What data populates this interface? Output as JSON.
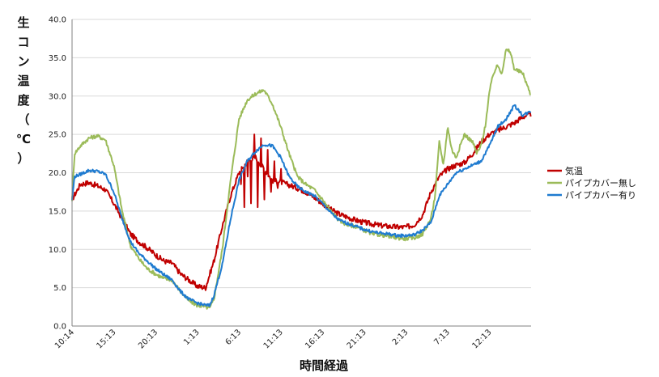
{
  "chart_data": {
    "type": "line",
    "ylabel": "生コン温度（℃）",
    "xlabel": "時間経過",
    "ylim": [
      0,
      40
    ],
    "yticks": [
      "0.0",
      "5.0",
      "10.0",
      "15.0",
      "20.0",
      "25.0",
      "30.0",
      "35.0",
      "40.0"
    ],
    "xticks": [
      "10:14",
      "15:13",
      "20:13",
      "1:13",
      "6:13",
      "11:13",
      "16:13",
      "21:13",
      "2:13",
      "7:13",
      "12:13"
    ],
    "x_start_hour": 10.23,
    "hours_per_tick": 5,
    "grid": true,
    "legend_position": "right",
    "series": [
      {
        "name": "気温",
        "color": "#c00000",
        "noise": 0.35,
        "x": [
          0,
          1,
          2,
          3,
          4,
          5,
          6,
          7,
          8,
          9,
          10,
          11,
          12,
          13,
          14,
          15,
          16,
          17,
          18,
          19,
          20,
          21,
          22,
          23,
          24,
          25,
          26,
          27,
          28,
          29,
          30,
          31,
          32,
          33,
          34,
          35,
          36,
          37,
          38,
          39,
          40,
          41,
          42,
          43,
          44,
          45,
          46,
          47,
          48,
          49,
          50,
          51,
          52,
          53,
          54,
          55
        ],
        "values": [
          16.5,
          18.5,
          18.7,
          18.3,
          17.8,
          16.0,
          14.0,
          12.0,
          11.0,
          10.2,
          9.3,
          8.5,
          8.2,
          6.8,
          6.0,
          5.2,
          5.0,
          8.5,
          13.0,
          17.0,
          20.0,
          21.5,
          22.0,
          20.5,
          19.0,
          18.8,
          18.4,
          18.0,
          17.5,
          16.8,
          16.0,
          15.2,
          14.6,
          14.2,
          13.8,
          13.5,
          13.3,
          13.1,
          13.0,
          12.9,
          12.9,
          13.2,
          14.5,
          17.5,
          19.5,
          20.5,
          21.0,
          21.3,
          22.5,
          24.0,
          25.0,
          25.5,
          26.0,
          26.5,
          27.3,
          27.6
        ],
        "spikes": [
          {
            "x": 20.2,
            "v": 18.5
          },
          {
            "x": 20.6,
            "v": 15.5
          },
          {
            "x": 21.0,
            "v": 19.5
          },
          {
            "x": 21.4,
            "v": 16.0
          },
          {
            "x": 21.8,
            "v": 25.0
          },
          {
            "x": 22.2,
            "v": 15.5
          },
          {
            "x": 22.6,
            "v": 24.5
          },
          {
            "x": 23.0,
            "v": 16.5
          },
          {
            "x": 23.4,
            "v": 23.0
          },
          {
            "x": 23.8,
            "v": 17.5
          },
          {
            "x": 24.2,
            "v": 21.5
          },
          {
            "x": 24.6,
            "v": 18.0
          },
          {
            "x": 25.0,
            "v": 20.5
          }
        ]
      },
      {
        "name": "パイプカバー無し",
        "color": "#9bbb59",
        "noise": 0.25,
        "x": [
          0,
          0.3,
          1,
          2,
          3,
          4,
          5,
          6,
          7,
          8,
          9,
          10,
          11,
          12,
          13,
          14,
          15,
          16,
          16.5,
          17,
          18,
          19,
          20,
          21,
          22,
          23,
          24,
          25,
          26,
          27,
          28,
          29,
          30,
          31,
          32,
          33,
          34,
          35,
          36,
          37,
          38,
          39,
          40,
          41,
          42,
          43,
          43.5,
          44,
          44.5,
          45,
          45.5,
          46,
          47,
          48,
          48.5,
          49,
          49.5,
          50,
          50.5,
          51,
          51.5,
          52,
          52.5,
          53,
          54,
          55
        ],
        "values": [
          16.5,
          22.5,
          23.5,
          24.5,
          24.8,
          24.3,
          21.0,
          15.0,
          10.5,
          8.8,
          7.5,
          6.8,
          6.2,
          6.0,
          4.5,
          3.3,
          2.7,
          2.5,
          2.3,
          3.5,
          10.0,
          19.0,
          27.0,
          29.5,
          30.3,
          30.8,
          29.0,
          26.0,
          22.5,
          19.5,
          18.5,
          17.8,
          16.5,
          15.0,
          13.8,
          13.2,
          13.0,
          12.5,
          12.0,
          11.9,
          11.7,
          11.5,
          11.4,
          11.5,
          12.0,
          14.0,
          17.0,
          24.0,
          21.0,
          26.0,
          23.0,
          22.0,
          25.0,
          24.0,
          22.5,
          23.5,
          26.0,
          30.5,
          33.0,
          34.0,
          33.0,
          36.0,
          35.8,
          33.5,
          33.0,
          30.0
        ]
      },
      {
        "name": "パイプカバー有り",
        "color": "#1f7bd0",
        "noise": 0.2,
        "x": [
          0,
          0.3,
          1,
          2,
          3,
          4,
          5,
          6,
          7,
          8,
          9,
          10,
          11,
          12,
          13,
          14,
          15,
          16,
          16.5,
          17,
          18,
          19,
          20,
          21,
          22,
          23,
          24,
          25,
          26,
          27,
          28,
          29,
          30,
          31,
          32,
          33,
          34,
          35,
          36,
          37,
          38,
          39,
          40,
          41,
          42,
          43,
          44,
          45,
          46,
          47,
          48,
          49,
          50,
          51,
          52,
          53,
          54,
          55
        ],
        "values": [
          16.5,
          19.5,
          19.8,
          20.3,
          20.2,
          19.8,
          17.5,
          14.0,
          11.0,
          9.5,
          8.5,
          7.5,
          6.7,
          6.0,
          4.5,
          3.5,
          3.0,
          2.7,
          2.7,
          4.0,
          8.0,
          14.0,
          19.0,
          21.5,
          22.8,
          23.7,
          23.5,
          22.0,
          19.5,
          18.2,
          17.5,
          17.0,
          16.0,
          14.8,
          13.8,
          13.4,
          13.0,
          12.6,
          12.3,
          12.1,
          12.0,
          11.8,
          11.8,
          11.9,
          12.5,
          13.5,
          17.0,
          18.5,
          20.0,
          20.5,
          21.0,
          21.5,
          23.5,
          26.0,
          27.0,
          28.8,
          27.5,
          28.0
        ]
      }
    ]
  }
}
